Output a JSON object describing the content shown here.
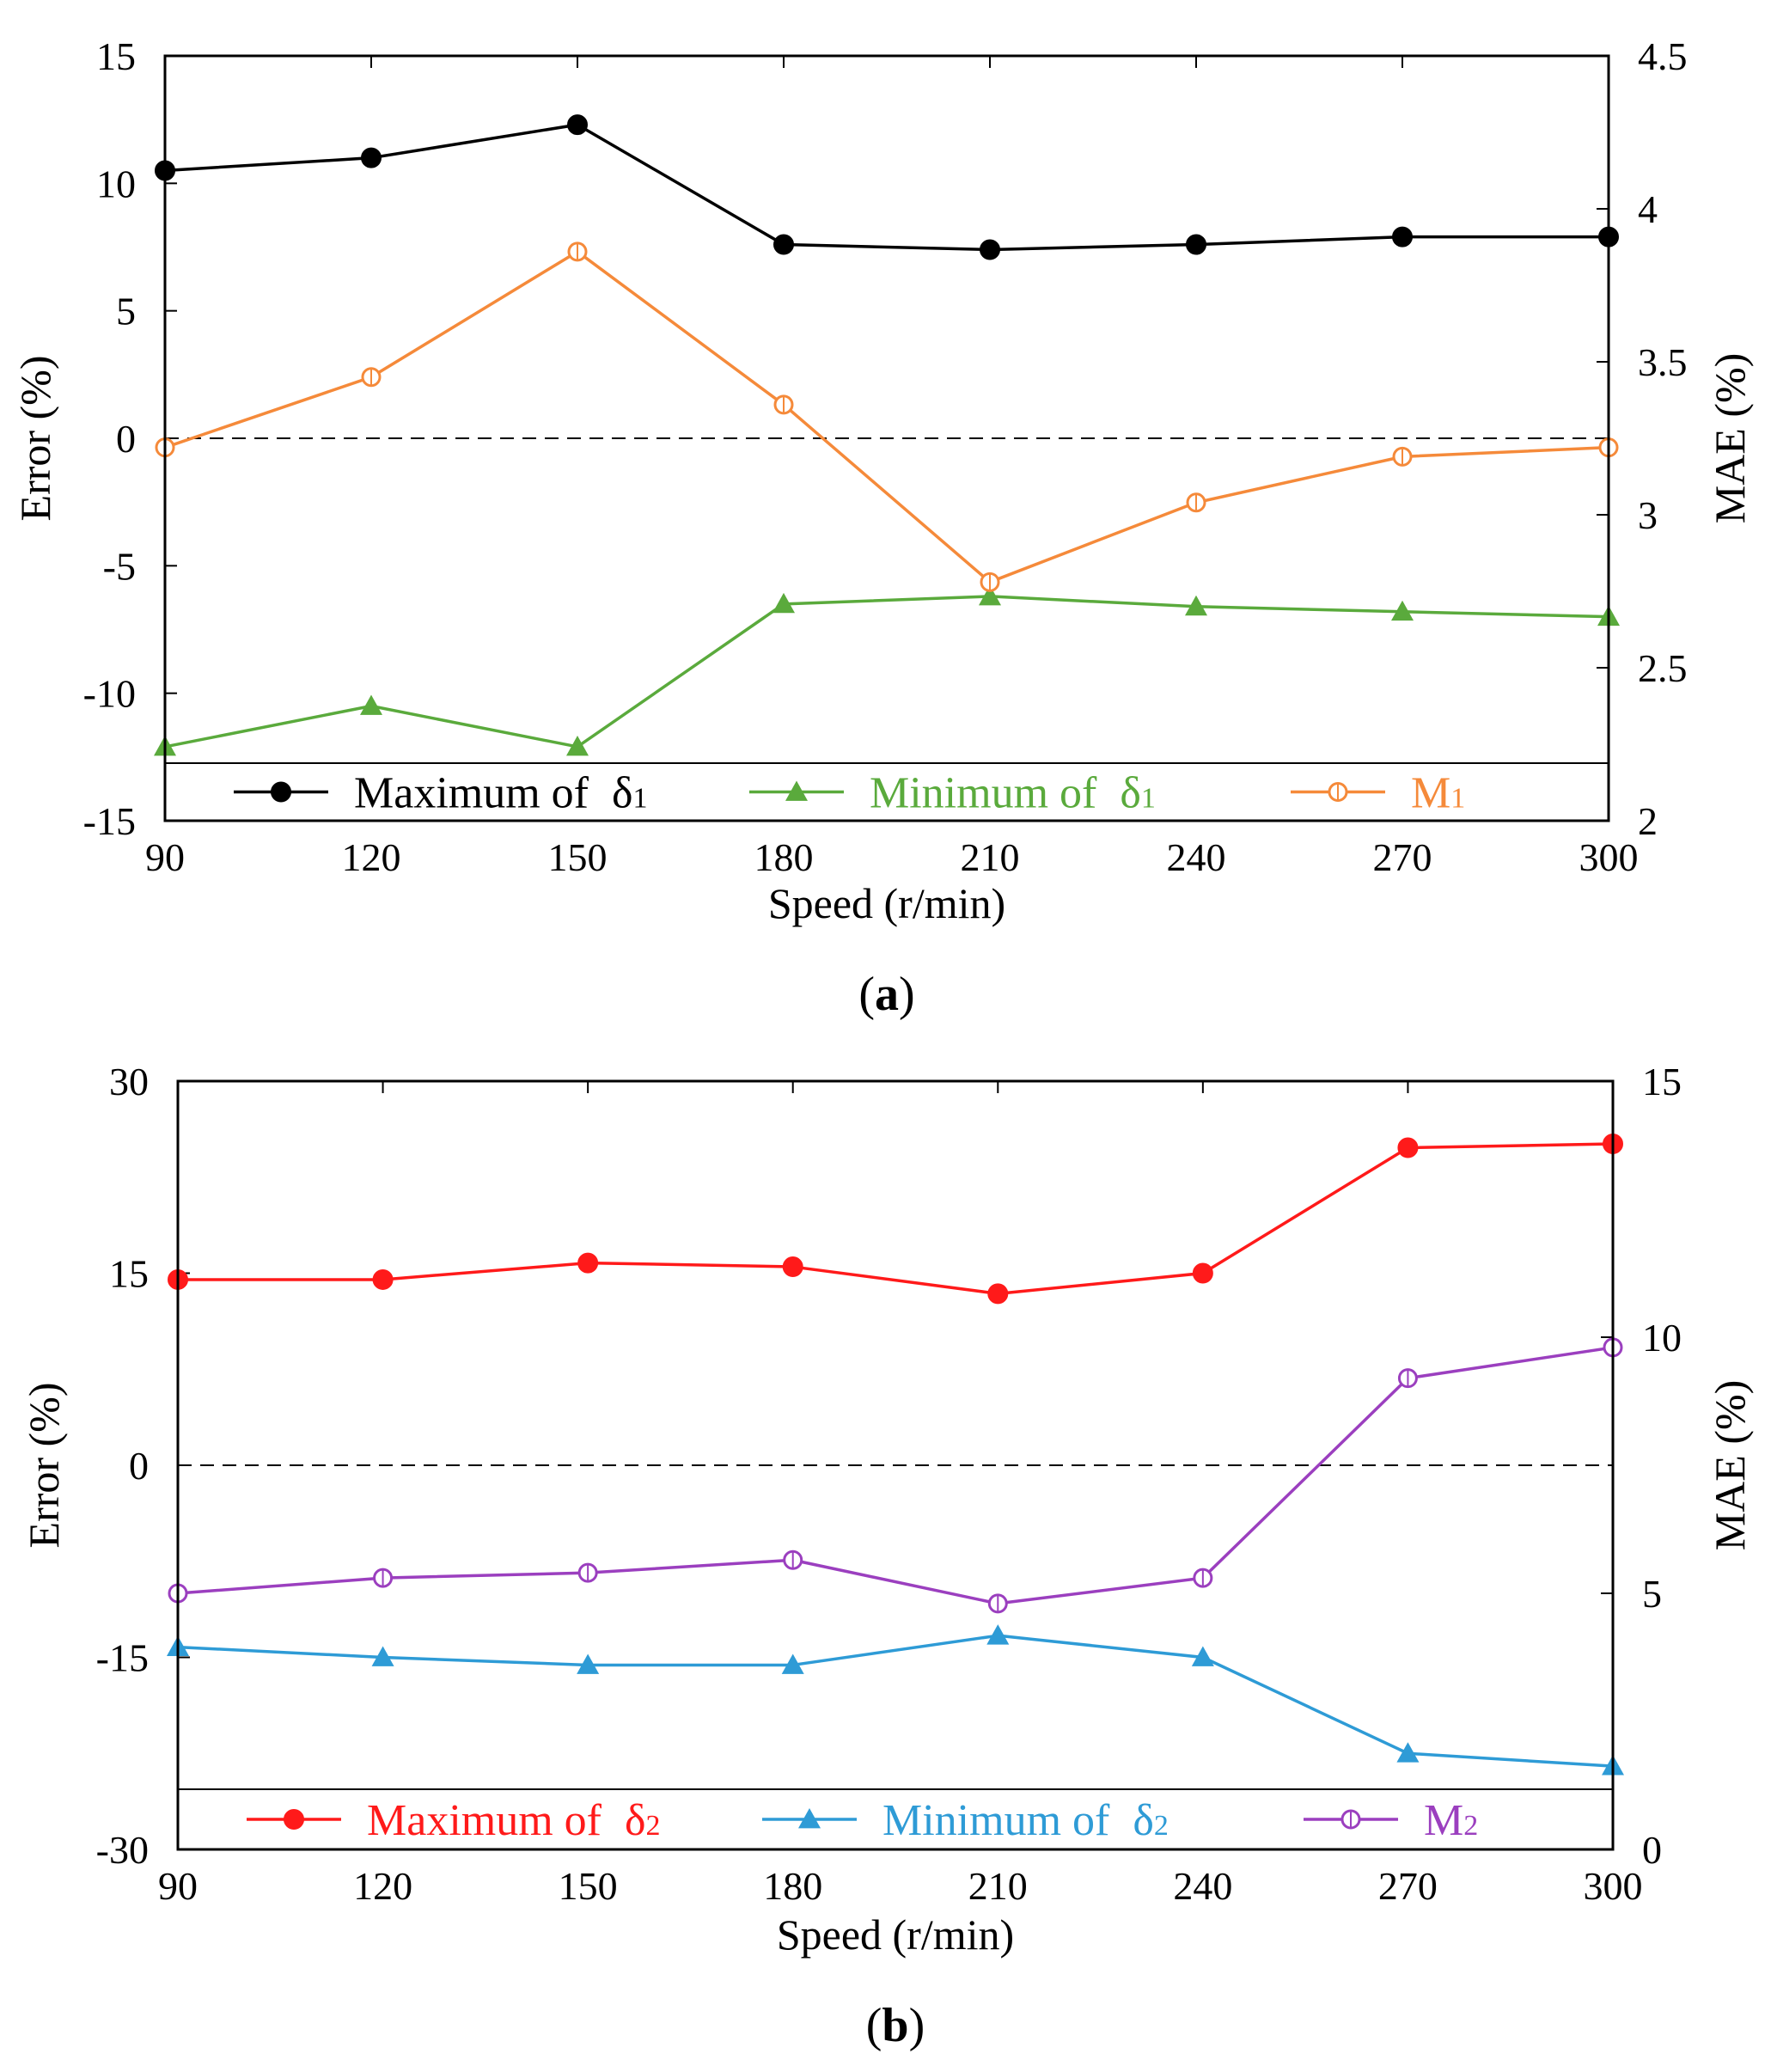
{
  "chart_data": [
    {
      "type": "line",
      "panel_label": "a",
      "x": [
        90,
        120,
        150,
        180,
        210,
        240,
        270,
        300
      ],
      "xlabel": "Speed (r/min)",
      "ylabel": "Error (%)",
      "ylabel_right": "MAE (%)",
      "xlim": [
        90,
        300
      ],
      "ylim": [
        -15,
        15
      ],
      "ylim_right": [
        2,
        4.5
      ],
      "x_ticks": [
        "90",
        "120",
        "150",
        "180",
        "210",
        "240",
        "270",
        "300"
      ],
      "y_ticks": [
        "15",
        "10",
        "5",
        "0",
        "-5",
        "-10",
        "-15"
      ],
      "y_ticks_right": [
        "4.5",
        "4",
        "3.5",
        "3",
        "2.5",
        "2"
      ],
      "reference_line": 0,
      "grid": false,
      "legend_position": "bottom",
      "series": [
        {
          "name": "Maximum of δ1",
          "label_text": "Maximum of ",
          "symbol": "δ",
          "subscript": "1",
          "axis": "left",
          "marker": "filled-circle",
          "color": "#000000",
          "values": [
            10.5,
            11.0,
            12.3,
            7.6,
            7.4,
            7.6,
            7.9,
            7.9
          ]
        },
        {
          "name": "Minimum of δ1",
          "label_text": "Minimum of ",
          "symbol": "δ",
          "subscript": "1",
          "axis": "left",
          "marker": "filled-triangle",
          "color": "#5aaa3c",
          "values": [
            -12.1,
            -10.5,
            -12.1,
            -6.5,
            -6.2,
            -6.6,
            -6.8,
            -7.0
          ]
        },
        {
          "name": "M1",
          "label_text": "M",
          "symbol": "",
          "subscript": "1",
          "axis": "right",
          "marker": "open-circle",
          "color": "#f58a3a",
          "values": [
            3.22,
            3.45,
            3.86,
            3.36,
            2.78,
            3.04,
            3.19,
            3.22
          ]
        }
      ]
    },
    {
      "type": "line",
      "panel_label": "b",
      "x": [
        90,
        120,
        150,
        180,
        210,
        240,
        270,
        300
      ],
      "xlabel": "Speed (r/min)",
      "ylabel": "Error (%)",
      "ylabel_right": "MAE (%)",
      "xlim": [
        90,
        300
      ],
      "ylim": [
        -30,
        30
      ],
      "ylim_right": [
        0,
        15
      ],
      "x_ticks": [
        "90",
        "120",
        "150",
        "180",
        "210",
        "240",
        "270",
        "300"
      ],
      "y_ticks": [
        "30",
        "15",
        "0",
        "-15",
        "-30"
      ],
      "y_ticks_right": [
        "15",
        "10",
        "5",
        "0"
      ],
      "reference_line": 0,
      "grid": false,
      "legend_position": "bottom",
      "series": [
        {
          "name": "Maximum of δ2",
          "label_text": "Maximum of ",
          "symbol": "δ",
          "subscript": "2",
          "axis": "left",
          "marker": "filled-circle",
          "color": "#ff1a1a",
          "values": [
            14.5,
            14.5,
            15.8,
            15.5,
            13.4,
            15.0,
            24.8,
            25.1
          ]
        },
        {
          "name": "Minimum of δ2",
          "label_text": "Minimum of ",
          "symbol": "δ",
          "subscript": "2",
          "axis": "left",
          "marker": "filled-triangle",
          "color": "#2e9bd6",
          "values": [
            -14.2,
            -15.0,
            -15.6,
            -15.6,
            -13.3,
            -15.0,
            -22.5,
            -23.5
          ]
        },
        {
          "name": "M2",
          "label_text": "M",
          "symbol": "",
          "subscript": "2",
          "axis": "right",
          "marker": "open-circle",
          "color": "#9b3fbf",
          "values": [
            5.0,
            5.3,
            5.4,
            5.65,
            4.8,
            5.3,
            9.2,
            9.8
          ]
        }
      ]
    }
  ]
}
